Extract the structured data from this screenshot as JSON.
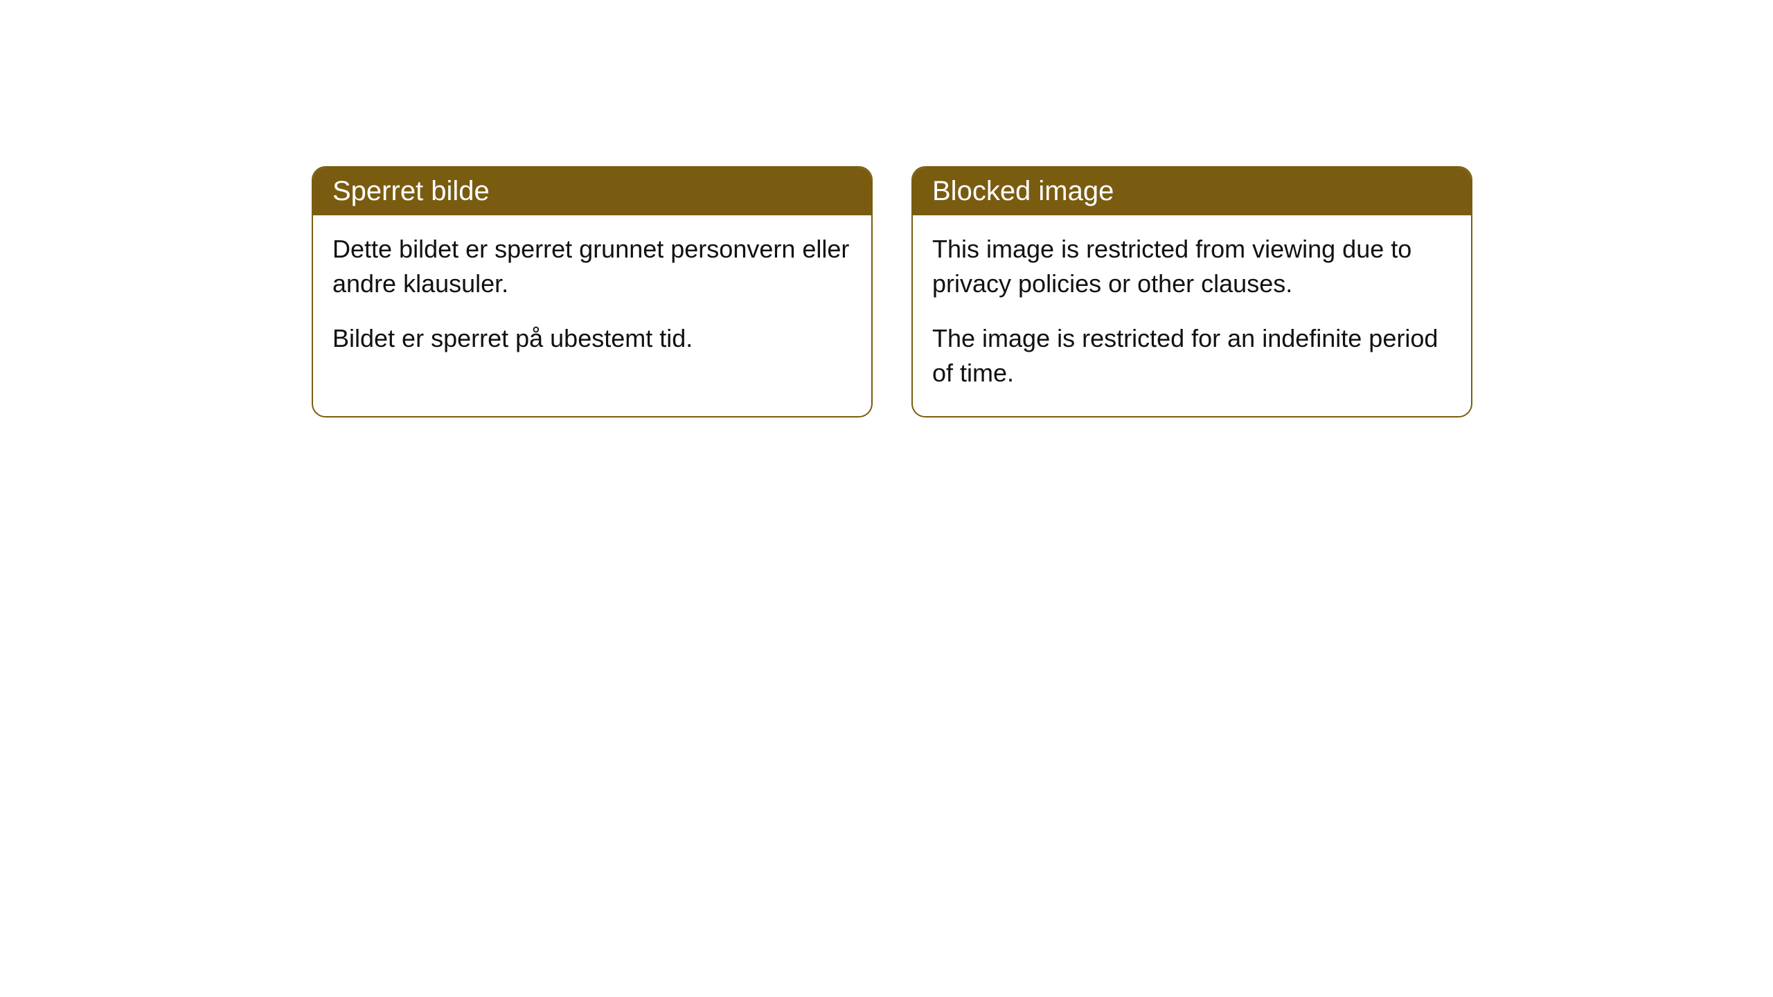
{
  "cards": [
    {
      "title": "Sperret bilde",
      "paragraph1": "Dette bildet er sperret grunnet personvern eller andre klausuler.",
      "paragraph2": "Bildet er sperret på ubestemt tid."
    },
    {
      "title": "Blocked image",
      "paragraph1": "This image is restricted from viewing due to privacy policies or other clauses.",
      "paragraph2": "The image is restricted for an indefinite period of time."
    }
  ],
  "styling": {
    "header_background_color": "#7a5c10",
    "header_text_color": "#ffffff",
    "border_color": "#7a5c10",
    "card_background_color": "#ffffff",
    "body_text_color": "#111111",
    "border_radius": 20,
    "header_fontsize": 40,
    "body_fontsize": 36
  }
}
